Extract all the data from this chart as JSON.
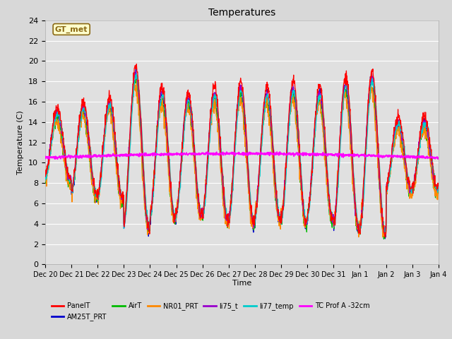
{
  "title": "Temperatures",
  "xlabel": "Time",
  "ylabel": "Temperature (C)",
  "ylim": [
    0,
    24
  ],
  "yticks": [
    0,
    2,
    4,
    6,
    8,
    10,
    12,
    14,
    16,
    18,
    20,
    22,
    24
  ],
  "bg_color": "#d8d8d8",
  "plot_bg_color": "#e0e0e0",
  "annotation_text": "GT_met",
  "annotation_bg": "#ffffcc",
  "annotation_border": "#8b6914",
  "series_colors": {
    "PanelT": "#ff0000",
    "AM25T_PRT": "#0000cc",
    "AirT": "#00bb00",
    "NR01_PRT": "#ff8800",
    "li75_t": "#9900cc",
    "li77_temp": "#00cccc",
    "TC Prof A -32cm": "#ff00ff"
  },
  "x_tick_labels": [
    "Dec 20",
    "Dec 21",
    "Dec 22",
    "Dec 23",
    "Dec 24",
    "Dec 25",
    "Dec 26",
    "Dec 27",
    "Dec 28",
    "Dec 29",
    "Dec 30",
    "Dec 31",
    "Jan 1",
    "Jan 2",
    "Jan 3",
    "Jan 4"
  ],
  "num_days": 15,
  "points_per_day": 96,
  "legend_row1": [
    "PanelT",
    "AM25T_PRT",
    "AirT",
    "NR01_PRT",
    "li75_t",
    "li77_temp"
  ],
  "legend_row2": [
    "TC Prof A -32cm"
  ]
}
